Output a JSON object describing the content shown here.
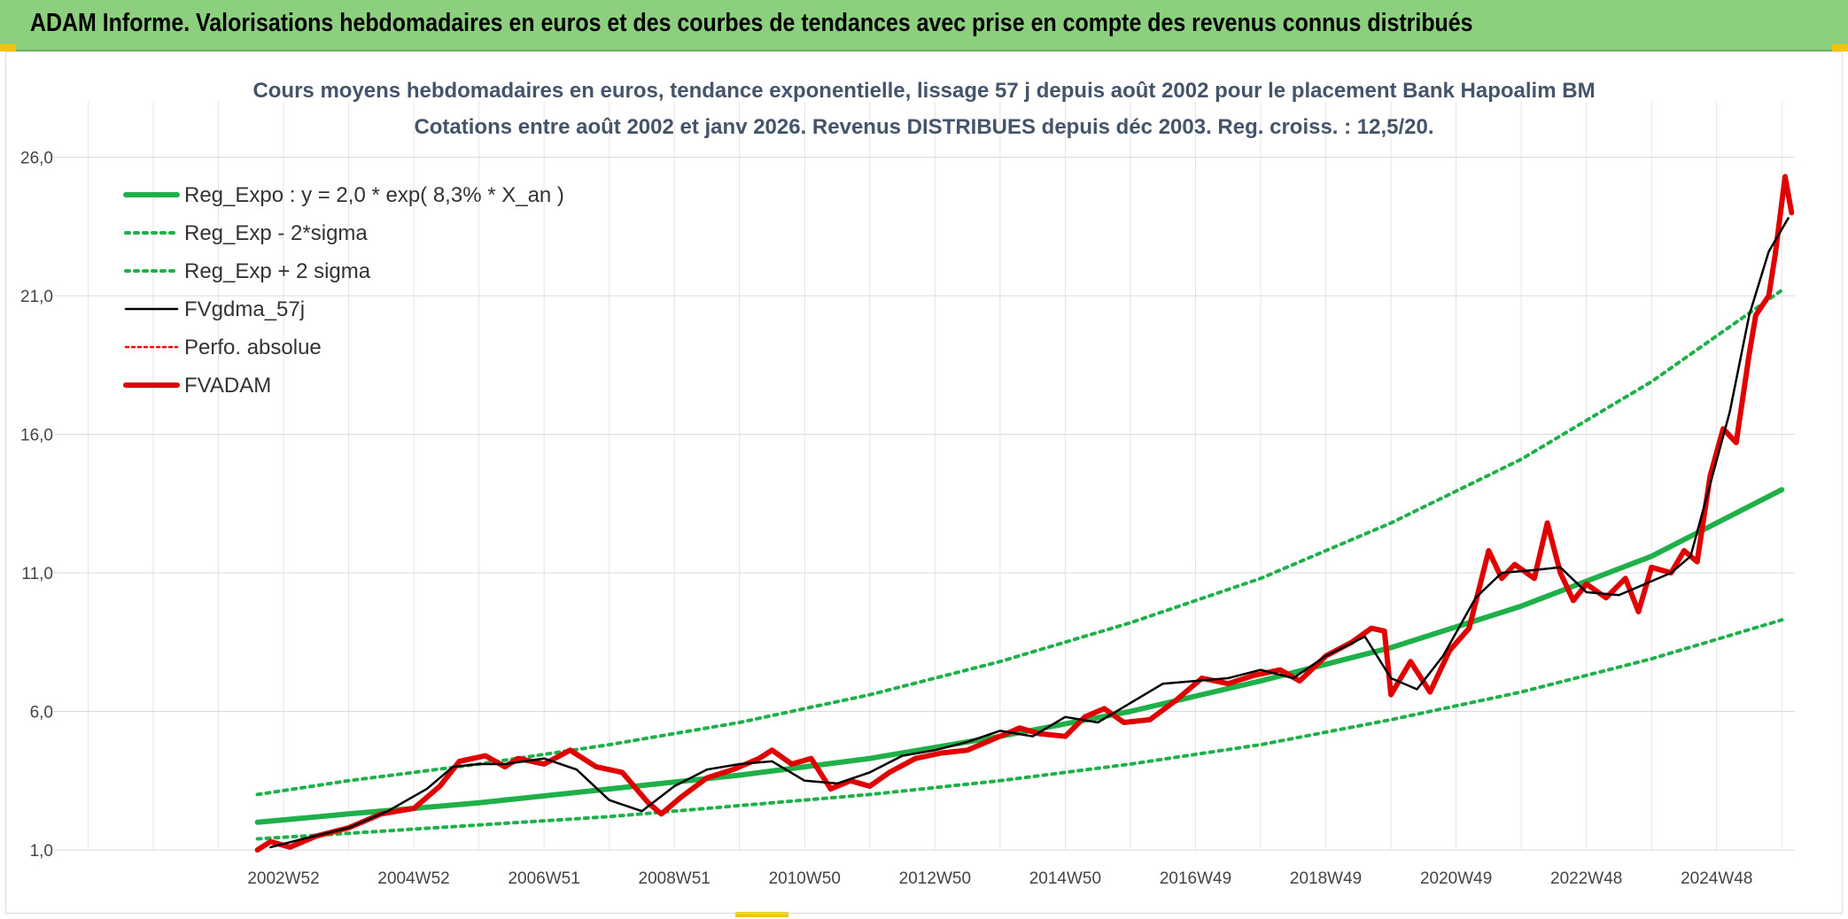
{
  "header": {
    "title": "ADAM Informe. Valorisations hebdomadaires en euros et des courbes de tendances avec prise en compte des revenus connus distribués"
  },
  "chart_data": {
    "type": "line",
    "title": "Cours moyens hebdomadaires en euros, tendance exponentielle, lissage 57 j depuis août 2002 pour le placement Bank Hapoalim BM",
    "subtitle": "Cotations entre août 2002 et janv 2026. Revenus DISTRIBUES depuis déc 2003. Reg. croiss. : 12,5/20.",
    "xlabel": "",
    "ylabel": "",
    "ylim": [
      1,
      28
    ],
    "yticks": [
      1,
      6,
      11,
      16,
      21,
      26
    ],
    "ytick_labels": [
      "1,0",
      "6,0",
      "11,0",
      "16,0",
      "21,0",
      "26,0"
    ],
    "xlim": [
      1999.6,
      2026.2
    ],
    "xticks": [
      2003,
      2005,
      2007,
      2009,
      2011,
      2013,
      2015,
      2017,
      2019,
      2021,
      2023,
      2025
    ],
    "xtick_labels": [
      "2002W52",
      "2004W52",
      "2006W51",
      "2008W51",
      "2010W50",
      "2012W50",
      "2014W50",
      "2016W49",
      "2018W49",
      "2020W49",
      "2022W48",
      "2024W48"
    ],
    "grid": true,
    "legend_position": "top-left",
    "series": [
      {
        "name": "Reg_Expo : y = 2,0 * exp( 8,3% *  X_an )",
        "color": "#1fb04a",
        "style": "solid-thick",
        "x": [
          2002.6,
          2004,
          2006,
          2008,
          2010,
          2012,
          2014,
          2016,
          2018,
          2020,
          2022,
          2024,
          2026
        ],
        "values": [
          2.0,
          2.3,
          2.7,
          3.2,
          3.7,
          4.3,
          5.1,
          6.0,
          7.1,
          8.3,
          9.8,
          11.6,
          14.0
        ]
      },
      {
        "name": "Reg_Exp - 2*sigma",
        "color": "#1fb04a",
        "style": "dotted",
        "x": [
          2002.6,
          2004,
          2006,
          2008,
          2010,
          2012,
          2014,
          2016,
          2018,
          2020,
          2022,
          2024,
          2026
        ],
        "values": [
          1.4,
          1.6,
          1.9,
          2.2,
          2.6,
          3.0,
          3.5,
          4.1,
          4.8,
          5.7,
          6.7,
          7.9,
          9.3
        ]
      },
      {
        "name": "Reg_Exp + 2 sigma",
        "color": "#1fb04a",
        "style": "dotted",
        "x": [
          2002.6,
          2004,
          2006,
          2008,
          2010,
          2012,
          2014,
          2016,
          2018,
          2020,
          2022,
          2024,
          2026
        ],
        "values": [
          3.0,
          3.5,
          4.1,
          4.8,
          5.6,
          6.6,
          7.8,
          9.2,
          10.8,
          12.8,
          15.1,
          17.9,
          21.2
        ]
      },
      {
        "name": "FVgdma_57j",
        "color": "#000000",
        "style": "solid-thin",
        "x": [
          2002.8,
          2003.3,
          2004,
          2004.6,
          2005.2,
          2005.6,
          2006,
          2006.4,
          2007,
          2007.5,
          2008,
          2008.5,
          2009,
          2009.5,
          2010,
          2010.5,
          2011,
          2011.5,
          2012,
          2012.5,
          2013,
          2013.5,
          2014,
          2014.5,
          2015,
          2015.5,
          2016,
          2016.5,
          2017,
          2017.5,
          2018,
          2018.5,
          2019,
          2019.6,
          2020,
          2020.4,
          2020.8,
          2021.3,
          2021.7,
          2022.2,
          2022.6,
          2023,
          2023.5,
          2023.9,
          2024.3,
          2024.6,
          2024.9,
          2025.2,
          2025.5,
          2025.8,
          2026.1
        ],
        "values": [
          1.1,
          1.4,
          1.8,
          2.4,
          3.2,
          4.0,
          4.1,
          4.1,
          4.3,
          3.9,
          2.8,
          2.4,
          3.3,
          3.9,
          4.1,
          4.2,
          3.5,
          3.4,
          3.8,
          4.4,
          4.6,
          4.9,
          5.3,
          5.1,
          5.8,
          5.6,
          6.3,
          7.0,
          7.1,
          7.2,
          7.5,
          7.2,
          8.0,
          8.7,
          7.2,
          6.8,
          8.0,
          10.1,
          11.0,
          11.1,
          11.2,
          10.3,
          10.2,
          10.6,
          11.0,
          11.6,
          14.2,
          16.8,
          20.3,
          22.6,
          23.8
        ]
      },
      {
        "name": "Perfo. absolue",
        "color": "#ff0000",
        "style": "dotted-thin",
        "x": [],
        "values": []
      },
      {
        "name": "FVADAM",
        "color": "#e00000",
        "style": "solid-thick",
        "x": [
          2002.6,
          2002.8,
          2003.1,
          2003.5,
          2004,
          2004.5,
          2005,
          2005.4,
          2005.7,
          2006.1,
          2006.4,
          2006.6,
          2007.0,
          2007.4,
          2007.8,
          2008.2,
          2008.6,
          2008.8,
          2009.1,
          2009.5,
          2009.9,
          2010.3,
          2010.5,
          2010.8,
          2011.1,
          2011.4,
          2011.7,
          2012.0,
          2012.3,
          2012.7,
          2013.1,
          2013.5,
          2013.9,
          2014.3,
          2014.6,
          2015.0,
          2015.3,
          2015.6,
          2015.9,
          2016.3,
          2016.7,
          2017.1,
          2017.5,
          2017.9,
          2018.3,
          2018.6,
          2019.0,
          2019.4,
          2019.7,
          2019.9,
          2020.0,
          2020.3,
          2020.6,
          2020.9,
          2021.2,
          2021.5,
          2021.7,
          2021.9,
          2022.2,
          2022.4,
          2022.6,
          2022.8,
          2023.0,
          2023.3,
          2023.6,
          2023.8,
          2024.0,
          2024.3,
          2024.5,
          2024.7,
          2024.9,
          2025.1,
          2025.3,
          2025.5,
          2025.6,
          2025.8,
          2025.9,
          2026.05,
          2026.15
        ],
        "values": [
          1.0,
          1.3,
          1.1,
          1.5,
          1.8,
          2.3,
          2.5,
          3.3,
          4.2,
          4.4,
          4.0,
          4.3,
          4.1,
          4.6,
          4.0,
          3.8,
          2.7,
          2.3,
          2.9,
          3.6,
          3.9,
          4.3,
          4.6,
          4.1,
          4.3,
          3.2,
          3.5,
          3.3,
          3.8,
          4.3,
          4.5,
          4.6,
          5.0,
          5.4,
          5.2,
          5.1,
          5.8,
          6.1,
          5.6,
          5.7,
          6.4,
          7.2,
          7.0,
          7.3,
          7.5,
          7.1,
          8.0,
          8.5,
          9.0,
          8.9,
          6.6,
          7.8,
          6.7,
          8.2,
          9.0,
          11.8,
          10.8,
          11.3,
          10.8,
          12.8,
          11.0,
          10.0,
          10.6,
          10.1,
          10.8,
          9.6,
          11.2,
          11.0,
          11.8,
          11.4,
          14.5,
          16.2,
          15.7,
          18.9,
          20.3,
          21.0,
          22.5,
          25.3,
          24.0
        ]
      }
    ]
  }
}
